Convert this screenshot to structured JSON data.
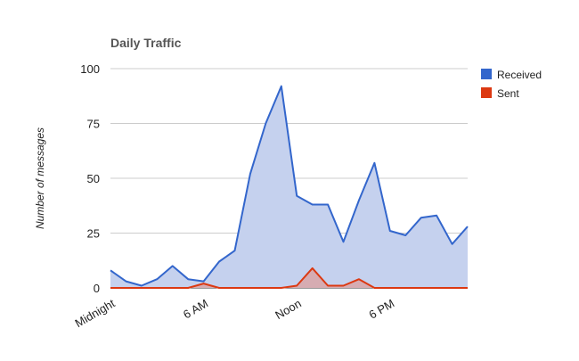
{
  "chart_data": {
    "type": "area",
    "title": "Daily Traffic",
    "xlabel": "",
    "ylabel": "Number of messages",
    "ylim": [
      0,
      100
    ],
    "yticks": [
      0,
      25,
      50,
      75,
      100
    ],
    "x": [
      0,
      1,
      2,
      3,
      4,
      5,
      6,
      7,
      8,
      9,
      10,
      11,
      12,
      13,
      14,
      15,
      16,
      17,
      18,
      19,
      20,
      21,
      22,
      23
    ],
    "xticks": [
      {
        "label": "Midnight",
        "x": 0
      },
      {
        "label": "6 AM",
        "x": 6
      },
      {
        "label": "Noon",
        "x": 12
      },
      {
        "label": "6 PM",
        "x": 18
      }
    ],
    "series": [
      {
        "name": "Received",
        "color": "#3366cc",
        "fill": "#c5d1ee",
        "values": [
          8,
          3,
          1,
          4,
          10,
          4,
          3,
          12,
          17,
          52,
          75,
          92,
          42,
          38,
          38,
          21,
          40,
          57,
          26,
          24,
          32,
          33,
          20,
          28
        ]
      },
      {
        "name": "Sent",
        "color": "#dc3912",
        "fill": "#d9a3a3",
        "values": [
          0,
          0,
          0,
          0,
          0,
          0,
          2,
          0,
          0,
          0,
          0,
          0,
          1,
          9,
          1,
          1,
          4,
          0,
          0,
          0,
          0,
          0,
          0,
          0
        ]
      }
    ],
    "grid": true,
    "legend": "right"
  }
}
